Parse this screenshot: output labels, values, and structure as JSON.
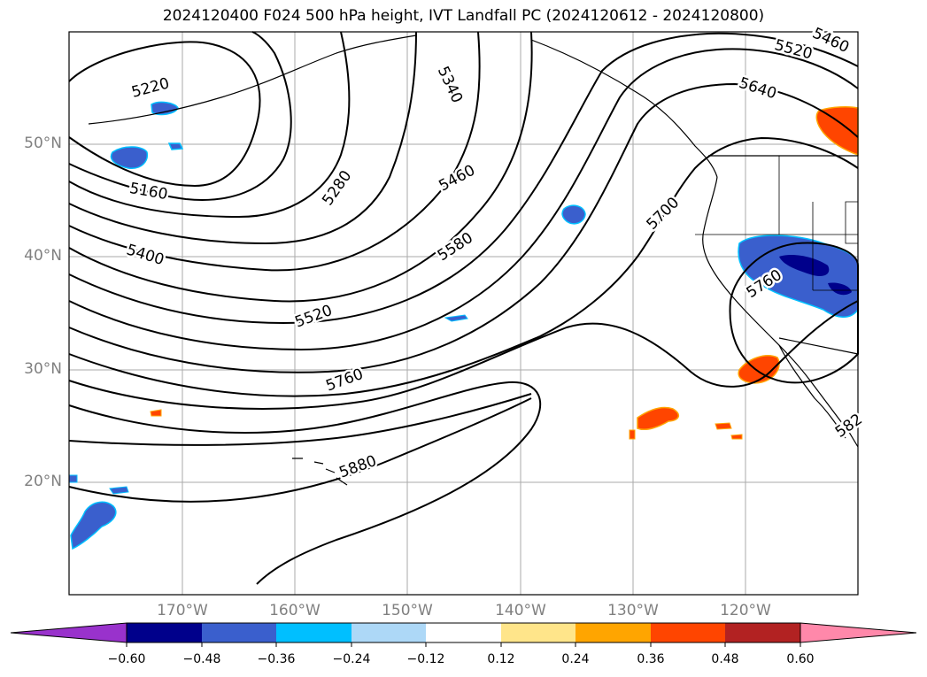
{
  "title": "2024120400 F024 500 hPa height, IVT Landfall PC (2024120612 - 2024120800)",
  "lat_labels": [
    "50°N",
    "40°N",
    "30°N",
    "20°N"
  ],
  "lon_labels": [
    "170°W",
    "160°W",
    "150°W",
    "140°W",
    "130°W",
    "120°W"
  ],
  "contour_labels": [
    "5220",
    "5340",
    "5460",
    "5520",
    "5640",
    "5160",
    "5280",
    "5460",
    "5700",
    "5400",
    "5580",
    "5520",
    "5760",
    "5760",
    "5880",
    "582"
  ],
  "colorbar": {
    "ticks": [
      "−0.60",
      "−0.48",
      "−0.36",
      "−0.24",
      "−0.12",
      "0.12",
      "0.24",
      "0.36",
      "0.48",
      "0.60"
    ],
    "colors": [
      "#9932cc",
      "#00008b",
      "#3a5fcd",
      "#00bfff",
      "#add8f7",
      "#ffffff",
      "#ffe58a",
      "#ffa500",
      "#ff4500",
      "#b22222",
      "#ff88aa"
    ]
  },
  "gridline_color": "#aaaaaa",
  "contour_color": "#000000"
}
